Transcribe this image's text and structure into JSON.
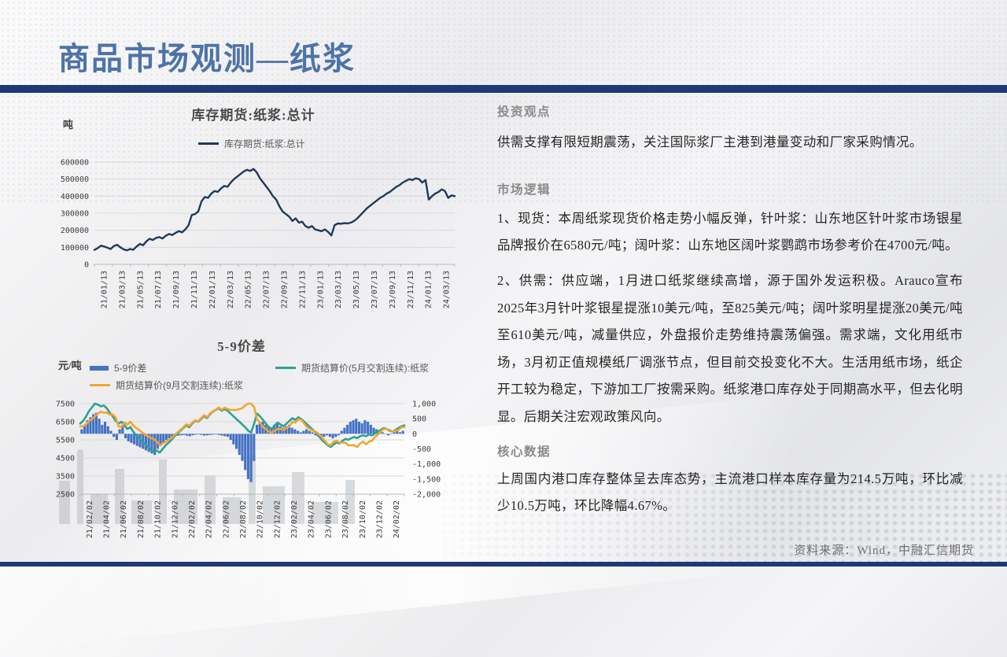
{
  "header": {
    "title": "商品市场观测—纸浆"
  },
  "colors": {
    "title_blue": "#4e73a8",
    "bar_navy": "#1e3a75",
    "inventory_line": "#21395a",
    "spread_bar_blue": "#4472c4",
    "may_line_teal": "#2ba394",
    "sep_line_orange": "#f3a52f",
    "grid": "#d9d9d9",
    "axis": "#b9b9b9"
  },
  "sections": {
    "view": {
      "heading": "投资观点",
      "body": "供需支撑有限短期震荡，关注国际浆厂主港到港量变动和厂家采购情况。"
    },
    "logic": {
      "heading": "市场逻辑",
      "p1": "1、现货：本周纸浆现货价格走势小幅反弹，针叶浆：山东地区针叶浆市场银星品牌报价在6580元/吨；阔叶浆：山东地区阔叶浆鹦鹉市场参考价在4700元/吨。",
      "p2": "2、供需：供应端，1月进口纸浆继续高增，源于国外发运积极。Arauco宣布2025年3月针叶浆银星提涨10美元/吨，至825美元/吨；阔叶浆明星提涨20美元/吨至610美元/吨，减量供应，外盘报价走势维持震荡偏强。需求端，文化用纸市场，3月初正值规模纸厂调涨节点，但目前交投变化不大。生活用纸市场，纸企开工较为稳定，下游加工厂按需采购。纸浆港口库存处于同期高水平，但去化明显。后期关注宏观政策风向。"
    },
    "core": {
      "heading": "核心数据",
      "body": "上周国内港口库存整体呈去库态势，主流港口样本库存量为214.5万吨，环比减少10.5万吨，环比降幅4.67%。"
    },
    "source": "资料来源：Wind，中融汇信期货"
  },
  "chart_data": [
    {
      "type": "line",
      "title": "库存期货:纸浆:总计",
      "unit": "吨",
      "legend": [
        "库存期货:纸浆:总计"
      ],
      "series_color": "#21395a",
      "ylim": [
        0,
        600000
      ],
      "y_tick_labels": [
        "600000",
        "500000",
        "400000",
        "300000",
        "200000",
        "100000",
        "0"
      ],
      "x_labels": [
        "21/01/13",
        "21/03/13",
        "21/05/13",
        "21/07/13",
        "21/09/13",
        "21/11/13",
        "22/01/13",
        "22/03/13",
        "22/05/13",
        "22/07/13",
        "22/09/13",
        "22/11/13",
        "23/01/13",
        "23/03/13",
        "23/05/13",
        "23/07/13",
        "23/09/13",
        "23/11/13",
        "24/01/13",
        "24/03/13"
      ],
      "grid": true,
      "legend_position": "top",
      "values": [
        85000,
        95000,
        110000,
        105000,
        98000,
        90000,
        108000,
        115000,
        100000,
        88000,
        82000,
        90000,
        86000,
        105000,
        120000,
        112000,
        135000,
        150000,
        143000,
        155000,
        160000,
        152000,
        168000,
        178000,
        172000,
        185000,
        195000,
        188000,
        205000,
        230000,
        290000,
        295000,
        310000,
        370000,
        395000,
        390000,
        415000,
        430000,
        425000,
        445000,
        460000,
        455000,
        480000,
        500000,
        515000,
        530000,
        545000,
        555000,
        548000,
        560000,
        540000,
        505000,
        480000,
        455000,
        430000,
        400000,
        380000,
        340000,
        310000,
        295000,
        280000,
        255000,
        270000,
        245000,
        250000,
        225000,
        215000,
        225000,
        205000,
        200000,
        195000,
        205000,
        190000,
        170000,
        230000,
        240000,
        238000,
        242000,
        240000,
        245000,
        255000,
        270000,
        290000,
        310000,
        330000,
        345000,
        360000,
        375000,
        390000,
        400000,
        415000,
        425000,
        440000,
        455000,
        465000,
        480000,
        490000,
        500000,
        495000,
        505000,
        500000,
        480000,
        495000,
        380000,
        400000,
        415000,
        425000,
        440000,
        430000,
        390000,
        405000,
        400000
      ]
    },
    {
      "type": "bar+line",
      "title": "5-9价差",
      "unit": "元/吨",
      "left_ylim": [
        2500,
        7500
      ],
      "right_ylim": [
        -2000,
        1000
      ],
      "left_tick_labels": [
        "7500",
        "6500",
        "5500",
        "4500",
        "3500",
        "2500"
      ],
      "right_tick_labels": [
        "1,000",
        "500",
        "0",
        "-500",
        "-1,000",
        "-1,500",
        "-2,000"
      ],
      "x_labels": [
        "21/02/02",
        "21/04/02",
        "21/06/02",
        "21/08/02",
        "21/10/02",
        "21/12/02",
        "22/02/02",
        "22/04/02",
        "22/06/02",
        "22/08/02",
        "22/10/02",
        "22/12/02",
        "23/02/02",
        "23/04/02",
        "23/06/02",
        "23/08/02",
        "23/10/02",
        "23/12/02",
        "24/02/02"
      ],
      "grid": true,
      "legend_position": "top",
      "series": [
        {
          "name": "5-9价差",
          "type": "bar",
          "axis": "right",
          "color": "#4472c4",
          "values": [
            150,
            300,
            450,
            550,
            650,
            700,
            500,
            300,
            400,
            250,
            100,
            -100,
            -200,
            150,
            300,
            -150,
            -250,
            -300,
            -350,
            -400,
            -450,
            -500,
            -550,
            -600,
            -650,
            -700,
            -500,
            -400,
            -300,
            -200,
            -150,
            -100,
            -80,
            -60,
            -50,
            -40,
            -60,
            -80,
            -50,
            -30,
            -20,
            -40,
            -60,
            -50,
            -40,
            -30,
            -20,
            -40,
            -60,
            -80,
            -100,
            -200,
            -350,
            -500,
            -700,
            -900,
            -1200,
            -1500,
            -1600,
            -900,
            300,
            350,
            400,
            300,
            250,
            200,
            300,
            350,
            250,
            200,
            250,
            300,
            200,
            150,
            100,
            50,
            100,
            150,
            100,
            50,
            -50,
            -100,
            -150,
            -100,
            -50,
            -100,
            -150,
            -100,
            -50,
            100,
            200,
            300,
            400,
            450,
            500,
            400,
            350,
            450,
            400,
            300,
            200,
            150,
            100,
            50,
            0,
            -50,
            0,
            50,
            100,
            50,
            100
          ]
        },
        {
          "name": "期货结算价(5月交割连续):纸浆",
          "type": "line",
          "axis": "left",
          "color": "#2ba394",
          "values": [
            6400,
            6550,
            6800,
            7100,
            7300,
            7500,
            7450,
            7350,
            7400,
            7250,
            7000,
            6800,
            6550,
            6400,
            6500,
            6300,
            6100,
            6200,
            5950,
            5750,
            5600,
            5400,
            5250,
            5100,
            4950,
            4850,
            4900,
            4800,
            5000,
            5200,
            5350,
            5500,
            5700,
            5850,
            6000,
            6150,
            6300,
            6200,
            6400,
            6550,
            6500,
            6650,
            6800,
            6700,
            6900,
            7050,
            7150,
            7250,
            7100,
            7200,
            7100,
            6950,
            6800,
            6650,
            6500,
            6350,
            6200,
            6000,
            5900,
            6400,
            6950,
            6800,
            6600,
            6400,
            6200,
            6100,
            6300,
            6450,
            6350,
            6250,
            6400,
            6550,
            6700,
            6600,
            6750,
            6650,
            6500,
            6350,
            6200,
            6050,
            5900,
            5700,
            5500,
            5350,
            5200,
            5100,
            5250,
            5350,
            5300,
            5450,
            5550,
            5500,
            5600,
            5650,
            5600,
            5700,
            5750,
            5700,
            5800,
            5750,
            5850,
            5950,
            6050,
            6150,
            6100,
            6000,
            5950,
            6050,
            6150,
            6250,
            6300
          ]
        },
        {
          "name": "期货结算价(9月交割连续):纸浆",
          "type": "line",
          "axis": "left",
          "color": "#f3a52f",
          "values": [
            6250,
            6250,
            6350,
            6550,
            6650,
            6800,
            6950,
            7050,
            7000,
            7000,
            6900,
            6900,
            6750,
            6250,
            6200,
            6450,
            6350,
            6500,
            6300,
            6150,
            6050,
            5900,
            5800,
            5700,
            5600,
            5550,
            5400,
            5200,
            5300,
            5400,
            5500,
            5600,
            5780,
            5910,
            6050,
            6190,
            6360,
            6280,
            6450,
            6580,
            6520,
            6690,
            6860,
            6750,
            6940,
            7080,
            7170,
            7290,
            7160,
            7280,
            7200,
            7150,
            7150,
            7150,
            7200,
            7250,
            7400,
            7500,
            7500,
            7300,
            6650,
            6450,
            6200,
            6100,
            5950,
            5900,
            6000,
            6100,
            6100,
            6050,
            6150,
            6250,
            6500,
            6450,
            6650,
            6600,
            6400,
            6200,
            6100,
            6000,
            5950,
            5800,
            5650,
            5450,
            5250,
            5200,
            5400,
            5450,
            5350,
            5350,
            5350,
            5200,
            5200,
            5200,
            5100,
            5300,
            5400,
            5250,
            5400,
            5450,
            5650,
            5800,
            5950,
            6100,
            6100,
            6050,
            5950,
            6000,
            6050,
            6200,
            6200
          ]
        }
      ]
    }
  ]
}
